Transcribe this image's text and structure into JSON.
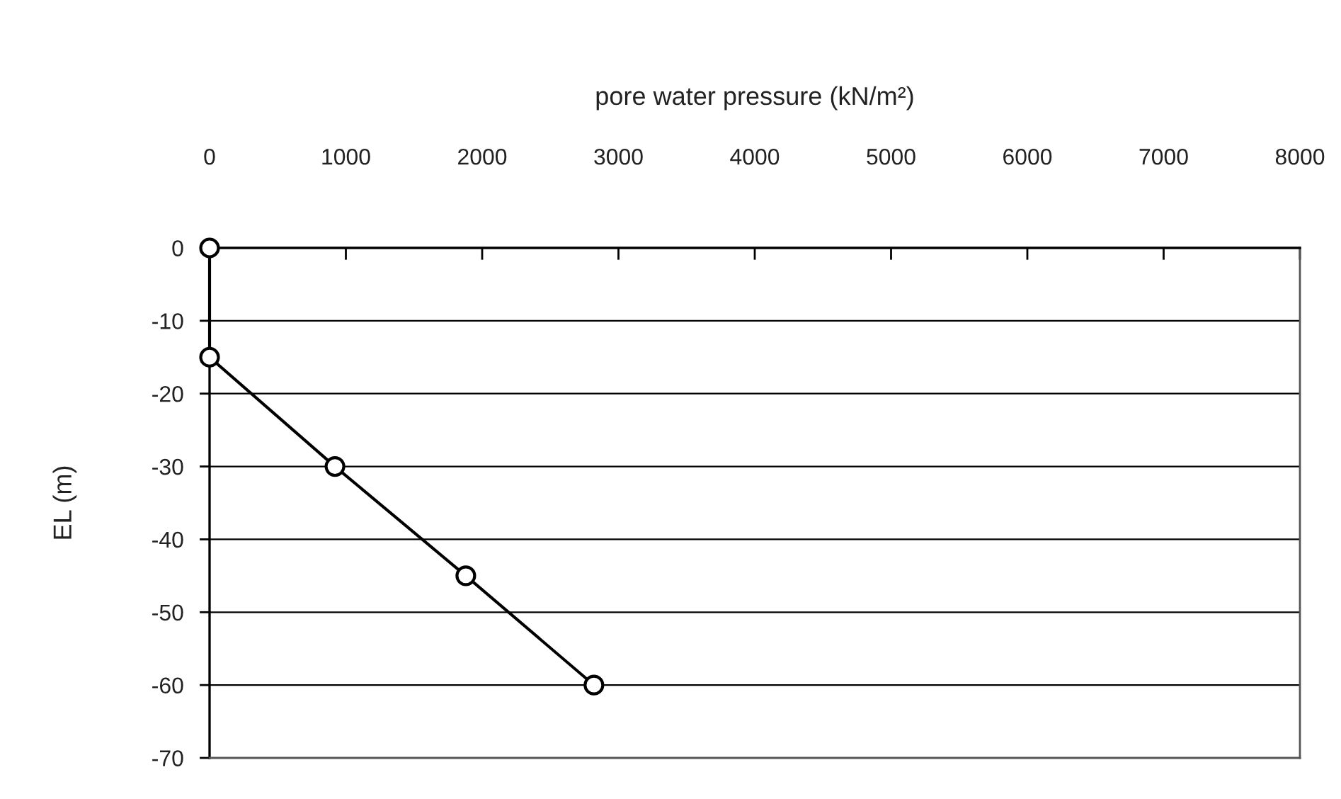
{
  "chart_data": {
    "type": "line",
    "xlabel": "pore water pressure (kN/m²)",
    "ylabel": "EL (m)",
    "series": [
      {
        "color": "#000000",
        "x": [
          0,
          0,
          920,
          1880,
          2820
        ],
        "values": [
          0,
          -15,
          -30,
          -45,
          -60
        ]
      }
    ],
    "xlim": [
      0,
      8000
    ],
    "xticks": [
      0,
      1000,
      2000,
      3000,
      4000,
      5000,
      6000,
      7000,
      8000
    ],
    "ylim": [
      -70,
      0
    ],
    "yticks": [
      0,
      -10,
      -20,
      -30,
      -40,
      -50,
      -60,
      -70
    ],
    "grid": "y",
    "marker": "circle",
    "line_style": "solid"
  }
}
